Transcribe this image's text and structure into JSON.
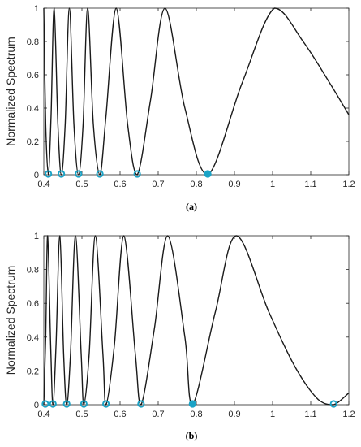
{
  "chart_data": [
    {
      "type": "line",
      "caption": "(a)",
      "ylabel": "Normalized Spectrum",
      "xlim": [
        0.4,
        1.2
      ],
      "ylim": [
        0,
        1
      ],
      "xticks": [
        0.4,
        0.5,
        0.6,
        0.7,
        0.8,
        0.9,
        1,
        1.1,
        1.2
      ],
      "yticks": [
        0,
        0.2,
        0.4,
        0.6,
        0.8,
        1
      ],
      "grid": false,
      "line_color": "#1a1a1a",
      "marker_color": "#1ba3c6",
      "series": [
        {
          "values": [
            [
              0.4,
              1.0
            ],
            [
              0.405,
              0.3
            ],
            [
              0.412,
              0.0
            ],
            [
              0.419,
              0.35
            ],
            [
              0.427,
              1.0
            ],
            [
              0.437,
              0.3
            ],
            [
              0.446,
              0.0
            ],
            [
              0.456,
              0.3
            ],
            [
              0.467,
              1.0
            ],
            [
              0.479,
              0.3
            ],
            [
              0.491,
              0.0
            ],
            [
              0.503,
              0.3
            ],
            [
              0.515,
              1.0
            ],
            [
              0.53,
              0.3
            ],
            [
              0.547,
              0.0
            ],
            [
              0.563,
              0.35
            ],
            [
              0.59,
              1.0
            ],
            [
              0.62,
              0.3
            ],
            [
              0.645,
              0.0
            ],
            [
              0.68,
              0.45
            ],
            [
              0.718,
              1.0
            ],
            [
              0.77,
              0.4
            ],
            [
              0.83,
              0.0
            ],
            [
              0.92,
              0.55
            ],
            [
              1.005,
              1.0
            ],
            [
              1.08,
              0.8
            ],
            [
              1.15,
              0.55
            ],
            [
              1.2,
              0.36
            ]
          ]
        }
      ],
      "minima": [
        {
          "x": 0.412,
          "y": 0,
          "style": "open"
        },
        {
          "x": 0.446,
          "y": 0,
          "style": "open"
        },
        {
          "x": 0.491,
          "y": 0,
          "style": "open"
        },
        {
          "x": 0.547,
          "y": 0,
          "style": "open"
        },
        {
          "x": 0.645,
          "y": 0,
          "style": "open"
        },
        {
          "x": 0.83,
          "y": 0,
          "style": "filled"
        }
      ]
    },
    {
      "type": "line",
      "caption": "(b)",
      "ylabel": "Normalized Spectrum",
      "xlim": [
        0.4,
        1.2
      ],
      "ylim": [
        0,
        1
      ],
      "xticks": [
        0.4,
        0.5,
        0.6,
        0.7,
        0.8,
        0.9,
        1,
        1.1,
        1.2
      ],
      "yticks": [
        0,
        0.2,
        0.4,
        0.6,
        0.8,
        1
      ],
      "grid": false,
      "line_color": "#1a1a1a",
      "marker_color": "#1ba3c6",
      "series": [
        {
          "values": [
            [
              0.4,
              0.0
            ],
            [
              0.405,
              0.4
            ],
            [
              0.41,
              1.0
            ],
            [
              0.418,
              0.35
            ],
            [
              0.424,
              0.0
            ],
            [
              0.432,
              0.35
            ],
            [
              0.442,
              1.0
            ],
            [
              0.452,
              0.3
            ],
            [
              0.46,
              0.0
            ],
            [
              0.47,
              0.3
            ],
            [
              0.483,
              1.0
            ],
            [
              0.498,
              0.3
            ],
            [
              0.505,
              0.0
            ],
            [
              0.519,
              0.3
            ],
            [
              0.535,
              1.0
            ],
            [
              0.555,
              0.3
            ],
            [
              0.563,
              0.0
            ],
            [
              0.585,
              0.35
            ],
            [
              0.61,
              1.0
            ],
            [
              0.64,
              0.3
            ],
            [
              0.655,
              0.0
            ],
            [
              0.69,
              0.45
            ],
            [
              0.725,
              1.0
            ],
            [
              0.77,
              0.4
            ],
            [
              0.79,
              0.0
            ],
            [
              0.85,
              0.55
            ],
            [
              0.905,
              1.0
            ],
            [
              0.99,
              0.55
            ],
            [
              1.06,
              0.22
            ],
            [
              1.12,
              0.03
            ],
            [
              1.16,
              0.0
            ],
            [
              1.2,
              0.07
            ]
          ]
        }
      ],
      "minima": [
        {
          "x": 0.404,
          "y": 0,
          "style": "open"
        },
        {
          "x": 0.424,
          "y": 0,
          "style": "open"
        },
        {
          "x": 0.46,
          "y": 0,
          "style": "open"
        },
        {
          "x": 0.505,
          "y": 0,
          "style": "open"
        },
        {
          "x": 0.563,
          "y": 0,
          "style": "open"
        },
        {
          "x": 0.655,
          "y": 0,
          "style": "open"
        },
        {
          "x": 0.79,
          "y": 0,
          "style": "filled"
        },
        {
          "x": 1.16,
          "y": 0,
          "style": "open"
        }
      ]
    }
  ]
}
